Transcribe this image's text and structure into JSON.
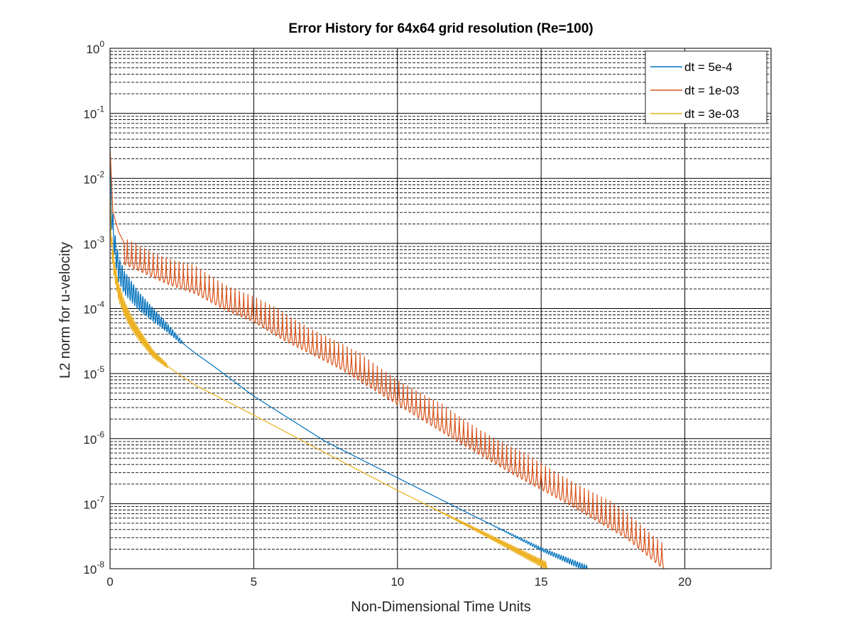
{
  "chart_data": {
    "type": "line",
    "title": "Error History for 64x64 grid resolution (Re=100)",
    "xlabel": "Non-Dimensional Time Units",
    "ylabel": "L2 norm for u-velocity",
    "xlim": [
      0,
      23
    ],
    "ylim": [
      1e-08,
      1
    ],
    "yscale": "log",
    "grid": true,
    "minor_grid": true,
    "legend_position": "top-right",
    "x_ticks": [
      {
        "value": 0,
        "label": "0"
      },
      {
        "value": 5,
        "label": "5"
      },
      {
        "value": 10,
        "label": "10"
      },
      {
        "value": 15,
        "label": "15"
      },
      {
        "value": 20,
        "label": "20"
      }
    ],
    "y_ticks": [
      {
        "value": 1.0,
        "base": "10",
        "exp": "0"
      },
      {
        "value": 0.1,
        "base": "10",
        "exp": "-1"
      },
      {
        "value": 0.01,
        "base": "10",
        "exp": "-2"
      },
      {
        "value": 0.001,
        "base": "10",
        "exp": "-3"
      },
      {
        "value": 0.0001,
        "base": "10",
        "exp": "-4"
      },
      {
        "value": 1e-05,
        "base": "10",
        "exp": "-5"
      },
      {
        "value": 1e-06,
        "base": "10",
        "exp": "-6"
      },
      {
        "value": 1e-07,
        "base": "10",
        "exp": "-7"
      },
      {
        "value": 1e-08,
        "base": "10",
        "exp": "-8"
      }
    ],
    "series": [
      {
        "name": "dt = 5e-4",
        "color": "#0072BD",
        "oscillation": {
          "amplitude_decades": 0.18,
          "period": 0.08,
          "decay_until": 2.5
        },
        "x": [
          0,
          0.05,
          0.15,
          0.3,
          0.5,
          0.75,
          1.0,
          1.5,
          2.0,
          2.5,
          3.0,
          3.5,
          5.0,
          7.5,
          10.0,
          12.5,
          15.0,
          16.6
        ],
        "y": [
          0.02,
          0.003,
          0.001,
          0.0004,
          0.00025,
          0.00018,
          0.00013,
          8e-05,
          5e-05,
          3e-05,
          2e-05,
          1.4e-05,
          4.5e-06,
          9e-07,
          2.5e-07,
          7e-08,
          2e-08,
          1e-08
        ]
      },
      {
        "name": "dt = 1e-03",
        "color": "#D95319",
        "oscillation": {
          "amplitude_decades": 0.5,
          "period": 0.3,
          "start": 0.5
        },
        "x": [
          0,
          0.1,
          0.3,
          0.5,
          1.0,
          2.0,
          3.0,
          4.0,
          5.0,
          6.0,
          8.0,
          10.0,
          12.0,
          14.0,
          16.0,
          18.0,
          19.3
        ],
        "y": [
          0.03,
          0.003,
          0.0015,
          0.001,
          0.0008,
          0.0005,
          0.00035,
          0.0002,
          0.00013,
          7e-05,
          2.5e-05,
          7e-06,
          2e-06,
          6e-07,
          2e-07,
          6e-08,
          2e-08
        ]
      },
      {
        "name": "dt = 3e-03",
        "color": "#EDB120",
        "oscillation": {
          "amplitude_decades": 0.12,
          "period": 0.05,
          "decay_until": 2.0,
          "late_band": 0.06
        },
        "x": [
          0,
          0.05,
          0.15,
          0.3,
          0.5,
          0.75,
          1.0,
          1.5,
          2.0,
          2.5,
          3.0,
          5.0,
          7.5,
          10.0,
          12.5,
          15.2
        ],
        "y": [
          0.005,
          0.001,
          0.0004,
          0.00018,
          0.0001,
          6e-05,
          4e-05,
          2e-05,
          1.3e-05,
          9e-06,
          6.5e-06,
          2.3e-06,
          6e-07,
          1.6e-07,
          4.5e-08,
          1.1e-08
        ]
      }
    ]
  }
}
